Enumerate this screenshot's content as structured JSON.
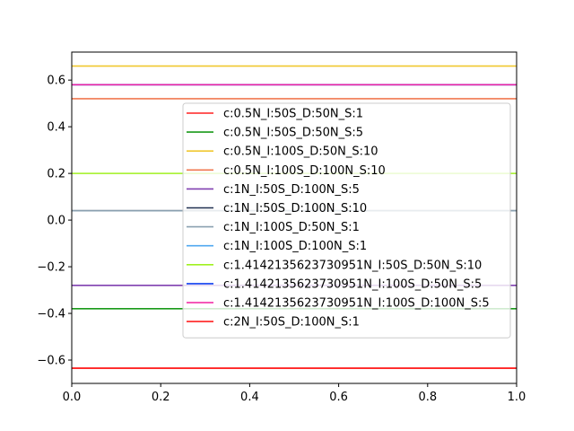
{
  "chart_data": {
    "type": "line",
    "title": "",
    "xlabel": "",
    "ylabel": "",
    "xlim": [
      0,
      1
    ],
    "ylim": [
      -0.7,
      0.72
    ],
    "x_ticks": [
      "0.0",
      "0.2",
      "0.4",
      "0.6",
      "0.8",
      "1.0"
    ],
    "y_ticks": [
      "−0.6",
      "−0.4",
      "−0.2",
      "0.0",
      "0.2",
      "0.4",
      "0.6"
    ],
    "grid": false,
    "legend_position": "center-right",
    "series": [
      {
        "name": "c:0.5N_I:50S_D:50N_S:1",
        "color": "#ff2020",
        "x": [
          0,
          1
        ],
        "y": [
          -0.635,
          -0.635
        ]
      },
      {
        "name": "c:0.5N_I:50S_D:50N_S:5",
        "color": "#1a9a1a",
        "x": [
          0,
          1
        ],
        "y": [
          -0.38,
          -0.38
        ]
      },
      {
        "name": "c:0.5N_I:100S_D:50N_S:10",
        "color": "#f0c830",
        "x": [
          0,
          1
        ],
        "y": [
          0.66,
          0.66
        ]
      },
      {
        "name": "c:0.5N_I:100S_D:100N_S:10",
        "color": "#f07850",
        "x": [
          0,
          1
        ],
        "y": [
          0.52,
          0.52
        ]
      },
      {
        "name": "c:1N_I:50S_D:100N_S:5",
        "color": "#8040b0",
        "x": [
          0,
          1
        ],
        "y": [
          -0.28,
          -0.28
        ]
      },
      {
        "name": "c:1N_I:50S_D:100N_S:10",
        "color": "#203050",
        "x": [
          0,
          1
        ],
        "y": [
          0.04,
          0.04
        ]
      },
      {
        "name": "c:1N_I:100S_D:50N_S:1",
        "color": "#8aa0b0",
        "x": [
          0,
          1
        ],
        "y": [
          0.04,
          0.04
        ]
      },
      {
        "name": "c:1N_I:100S_D:100N_S:1",
        "color": "#50a8f0",
        "x": [
          0,
          1
        ],
        "y": [
          0.58,
          0.58
        ]
      },
      {
        "name": "c:1.4142135623730951N_I:50S_D:50N_S:10",
        "color": "#a0f020",
        "x": [
          0,
          1
        ],
        "y": [
          0.2,
          0.2
        ]
      },
      {
        "name": "c:1.4142135623730951N_I:100S_D:50N_S:5",
        "color": "#1040f0",
        "x": [
          0,
          1
        ],
        "y": [
          0.58,
          0.58
        ]
      },
      {
        "name": "c:1.4142135623730951N_I:100S_D:100N_S:5",
        "color": "#f020a0",
        "x": [
          0,
          1
        ],
        "y": [
          0.58,
          0.58
        ]
      },
      {
        "name": "c:2N_I:50S_D:100N_S:1",
        "color": "#ff2020",
        "x": [
          0,
          1
        ],
        "y": [
          -0.635,
          -0.635
        ]
      }
    ]
  }
}
